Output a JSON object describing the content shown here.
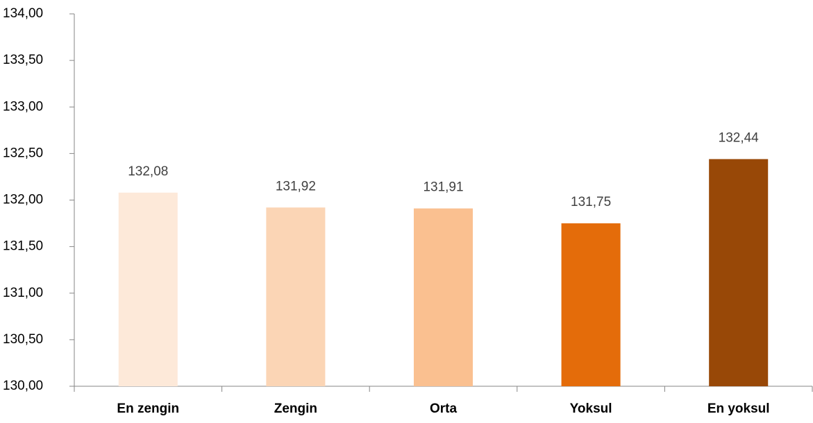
{
  "chart_data": {
    "type": "bar",
    "categories": [
      "En zengin",
      "Zengin",
      "Orta",
      "Yoksul",
      "En yoksul"
    ],
    "values": [
      132.08,
      131.92,
      131.91,
      131.75,
      132.44
    ],
    "value_labels": [
      "132,08",
      "131,92",
      "131,91",
      "131,75",
      "132,44"
    ],
    "colors": [
      "#fde9d9",
      "#fbd5b5",
      "#fac090",
      "#e46c0a",
      "#984807"
    ],
    "ylim": [
      130,
      134
    ],
    "yticks": [
      {
        "value": 130,
        "label": "130,00"
      },
      {
        "value": 130.5,
        "label": "130,50"
      },
      {
        "value": 131,
        "label": "131,00"
      },
      {
        "value": 131.5,
        "label": "131,50"
      },
      {
        "value": 132,
        "label": "132,00"
      },
      {
        "value": 132.5,
        "label": "132,50"
      },
      {
        "value": 133,
        "label": "133,00"
      },
      {
        "value": 133.5,
        "label": "133,50"
      },
      {
        "value": 134,
        "label": "134,00"
      }
    ],
    "grid": false
  }
}
